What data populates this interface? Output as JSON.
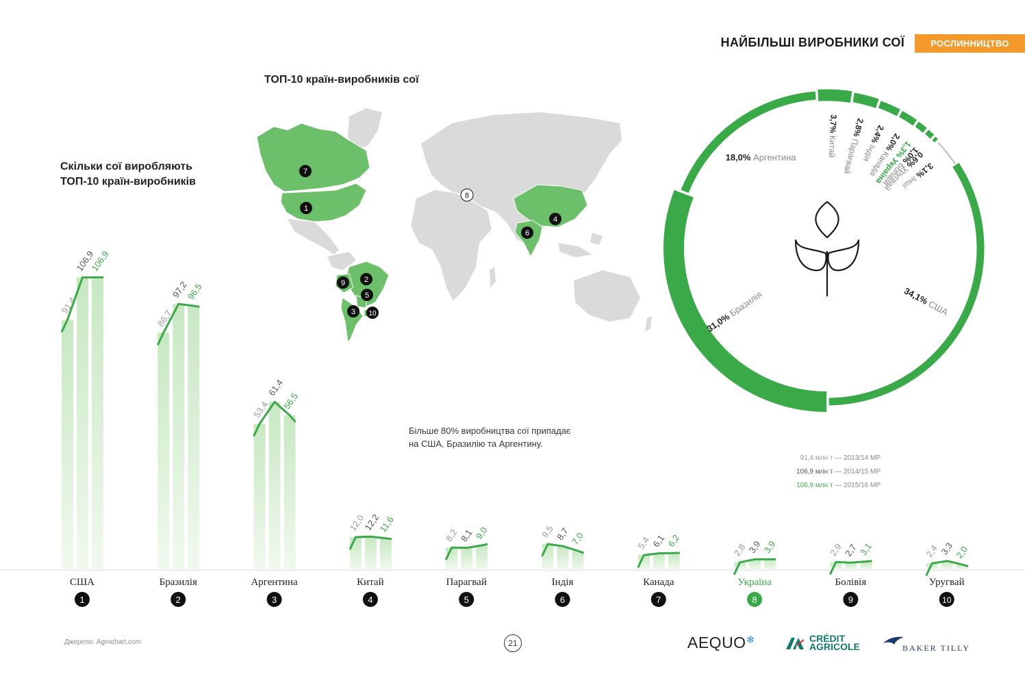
{
  "header": {
    "title": "НАЙБІЛЬШІ ВИРОБНИКИ СОЇ",
    "section_badge": "РОСЛИННИЦТВО"
  },
  "map": {
    "title": "ТОП-10 країн-виробників сої"
  },
  "bar_chart": {
    "title_line1": "Скільки сої виробляють",
    "title_line2": "ТОП-10 країн-виробників"
  },
  "note": {
    "line1": "Більше 80% виробництва сої припадає",
    "line2": "на США, Бразилію та Аргентину."
  },
  "legend": [
    {
      "value": "91,4 млн т",
      "season": "— 2013/14 МР",
      "color": "#9a9a9a"
    },
    {
      "value": "106,9 млн т",
      "season": "— 2014/15 МР",
      "color": "#555555"
    },
    {
      "value": "106,9 млн т",
      "season": "— 2015/16 МР",
      "color": "#3aaa48"
    }
  ],
  "footer": {
    "source": "Джерело: Agrochart.com",
    "page_number": "21",
    "logos": {
      "aequo": "AEQUO",
      "credit_agricole_1": "CRÉDIT",
      "credit_agricole_2": "AGRICOLE",
      "baker_tilly": "BAKER TILLY"
    }
  },
  "colors": {
    "accent_green": "#3aaa48",
    "bar_green": "#c9e9c4",
    "map_grey": "#dadada",
    "badge_orange": "#f39a2b",
    "label_grey": "#9a9a9a",
    "label_dark": "#555555"
  },
  "chart_data": [
    {
      "type": "bar",
      "unit": "млн т",
      "series_names": [
        "2013/14 МР",
        "2014/15 МР",
        "2015/16 МР"
      ],
      "countries": [
        {
          "rank": "1",
          "name": "США",
          "values": [
            91.4,
            106.9,
            106.9
          ],
          "labels": [
            "91,4",
            "106,9",
            "106,9"
          ]
        },
        {
          "rank": "2",
          "name": "Бразилія",
          "values": [
            86.7,
            97.2,
            96.5
          ],
          "labels": [
            "86,7",
            "97,2",
            "96,5"
          ]
        },
        {
          "rank": "3",
          "name": "Аргентина",
          "values": [
            53.4,
            61.4,
            56.5
          ],
          "labels": [
            "53,4",
            "61,4",
            "56,5"
          ]
        },
        {
          "rank": "4",
          "name": "Китай",
          "values": [
            12.0,
            12.2,
            11.6
          ],
          "labels": [
            "12,0",
            "12,2",
            "11,6"
          ]
        },
        {
          "rank": "5",
          "name": "Парагвай",
          "values": [
            8.2,
            8.1,
            9.0
          ],
          "labels": [
            "8,2",
            "8,1",
            "9,0"
          ]
        },
        {
          "rank": "6",
          "name": "Індія",
          "values": [
            9.5,
            8.7,
            7.0
          ],
          "labels": [
            "9,5",
            "8,7",
            "7,0"
          ]
        },
        {
          "rank": "7",
          "name": "Канада",
          "values": [
            5.4,
            6.1,
            6.2
          ],
          "labels": [
            "5,4",
            "6,1",
            "6,2"
          ]
        },
        {
          "rank": "8",
          "name": "Україна",
          "values": [
            2.8,
            3.9,
            3.9
          ],
          "labels": [
            "2,8",
            "3,9",
            "3,9"
          ],
          "highlight": true
        },
        {
          "rank": "9",
          "name": "Болівія",
          "values": [
            2.9,
            2.7,
            3.1
          ],
          "labels": [
            "2,9",
            "2,7",
            "3,1"
          ]
        },
        {
          "rank": "10",
          "name": "Уругвай",
          "values": [
            2.4,
            3.3,
            2.0
          ],
          "labels": [
            "2,4",
            "3,3",
            "2,0"
          ]
        }
      ]
    },
    {
      "type": "pie",
      "style": "ring",
      "slices": [
        {
          "name": "США",
          "value": 34.1,
          "label": "34,1%"
        },
        {
          "name": "Бразилія",
          "value": 31.0,
          "label": "31,0%"
        },
        {
          "name": "Аргентина",
          "value": 18.0,
          "label": "18,0%"
        },
        {
          "name": "Китай",
          "value": 3.7,
          "label": "3,7%"
        },
        {
          "name": "Парагвай",
          "value": 2.8,
          "label": "2,8%"
        },
        {
          "name": "Індія",
          "value": 2.4,
          "label": "2,4%"
        },
        {
          "name": "Канада",
          "value": 2.0,
          "label": "2,0%"
        },
        {
          "name": "Україна",
          "value": 1.3,
          "label": "1,3%",
          "highlight": true
        },
        {
          "name": "Болівія",
          "value": 1.0,
          "label": "1,0%"
        },
        {
          "name": "Уругвай",
          "value": 0.6,
          "label": "0,6%"
        },
        {
          "name": "Інші",
          "value": 3.1,
          "label": "3,1%"
        }
      ]
    }
  ]
}
